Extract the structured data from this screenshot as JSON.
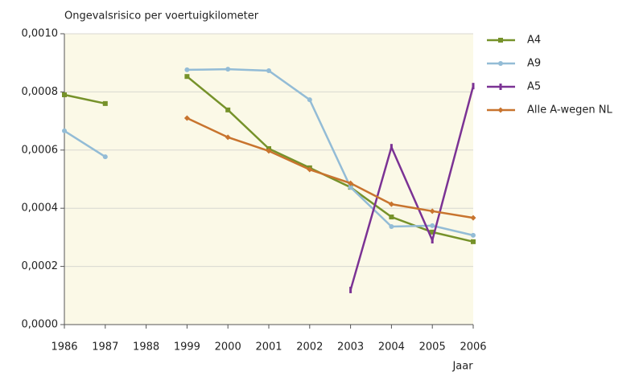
{
  "chart_data": {
    "type": "line",
    "title": "Ongevalsrisico per voertuigkilometer",
    "x_label": "Jaar",
    "categories": [
      "1986",
      "1987",
      "1988",
      "1999",
      "2000",
      "2001",
      "2002",
      "2003",
      "2004",
      "2005",
      "2006"
    ],
    "series": [
      {
        "name": "A4",
        "color": "#76922a",
        "marker": "square",
        "values": [
          0.00079,
          0.00076,
          null,
          0.000853,
          0.000738,
          0.000605,
          0.000539,
          0.000472,
          0.00037,
          0.000318,
          0.000285
        ]
      },
      {
        "name": "A9",
        "color": "#93bcd6",
        "marker": "circle",
        "values": [
          0.000666,
          0.000577,
          null,
          0.000876,
          0.000878,
          0.000873,
          0.000773,
          0.000472,
          0.000337,
          0.00034,
          0.000307
        ]
      },
      {
        "name": "A5",
        "color": "#7b3294",
        "marker": "dash",
        "values": [
          null,
          null,
          null,
          null,
          null,
          null,
          null,
          0.000119,
          0.00061,
          0.00029,
          0.00082
        ]
      },
      {
        "name": "Alle A-wegen NL",
        "color": "#c8742e",
        "marker": "diamond",
        "values": [
          null,
          null,
          null,
          0.00071,
          0.000644,
          0.000597,
          0.000533,
          0.000486,
          0.000414,
          0.00039,
          0.000367
        ]
      }
    ],
    "ylim": [
      0,
      0.001
    ],
    "yticks": [
      {
        "value": 0,
        "label": "0,0000"
      },
      {
        "value": 0.0002,
        "label": "0,0002"
      },
      {
        "value": 0.0004,
        "label": "0,0004"
      },
      {
        "value": 0.0006,
        "label": "0,0006"
      },
      {
        "value": 0.0008,
        "label": "0,0008"
      },
      {
        "value": 0.001,
        "label": "0,0010"
      }
    ],
    "grid": true,
    "legend": "right",
    "background": "#fbf9e7"
  }
}
